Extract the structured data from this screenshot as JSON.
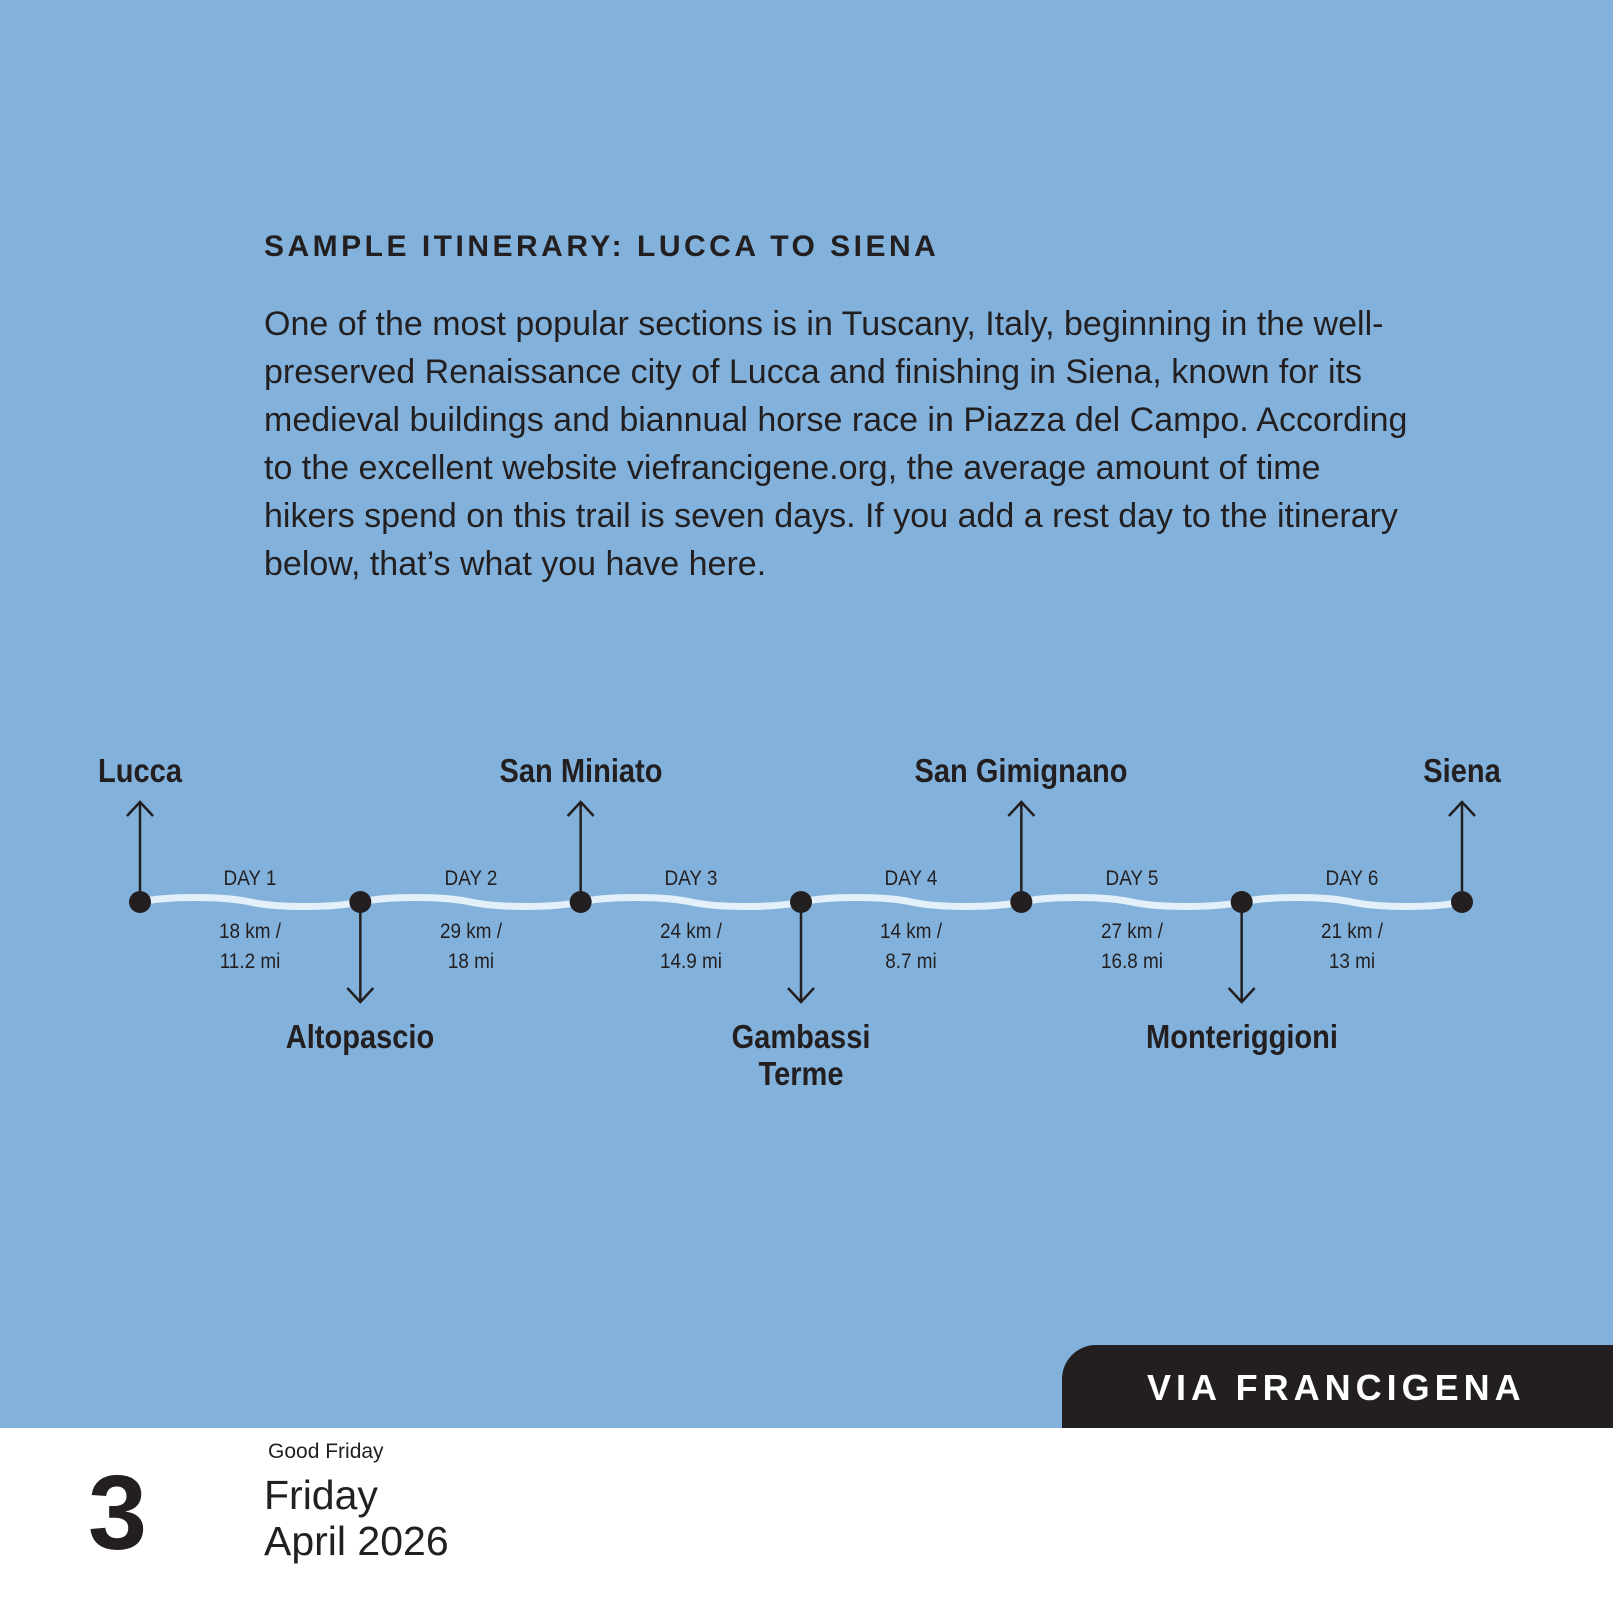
{
  "colors": {
    "background": "#82b2dc",
    "ink": "#231f20",
    "trail": "#e3f0fa",
    "tab": "#231f20"
  },
  "heading": "SAMPLE ITINERARY: LUCCA TO SIENA",
  "paragraph": "One of the most popular sections is in Tuscany, Italy, beginning in the well-preserved Renaissance city of Lucca and finishing in Siena, known for its medieval buildings and biannual horse race in Piazza del Campo. According to the excellent website viefrancigene.org, the average amount of time hikers spend on this trail is seven days. If you add a rest day to the itinerary below, that’s what you have here.",
  "stops": [
    {
      "name": "Lucca",
      "side": "above"
    },
    {
      "name": "Altopascio",
      "side": "below"
    },
    {
      "name": "San Miniato",
      "side": "above"
    },
    {
      "name": "Gambassi Terme",
      "side": "below"
    },
    {
      "name": "San Gimignano",
      "side": "above"
    },
    {
      "name": "Monteriggioni",
      "side": "below"
    },
    {
      "name": "Siena",
      "side": "above"
    }
  ],
  "legs": [
    {
      "day": "DAY 1",
      "km": "18 km /",
      "mi": "11.2 mi"
    },
    {
      "day": "DAY 2",
      "km": "29 km /",
      "mi": "18 mi"
    },
    {
      "day": "DAY 3",
      "km": "24 km /",
      "mi": "14.9 mi"
    },
    {
      "day": "DAY 4",
      "km": "14 km /",
      "mi": "8.7 mi"
    },
    {
      "day": "DAY 5",
      "km": "27 km /",
      "mi": "16.8 mi"
    },
    {
      "day": "DAY 6",
      "km": "21 km /",
      "mi": "13 mi"
    }
  ],
  "tab_label": "VIA FRANCIGENA",
  "calendar": {
    "day_number": "3",
    "holiday": "Good Friday",
    "weekday": "Friday",
    "month_year": "April 2026"
  }
}
